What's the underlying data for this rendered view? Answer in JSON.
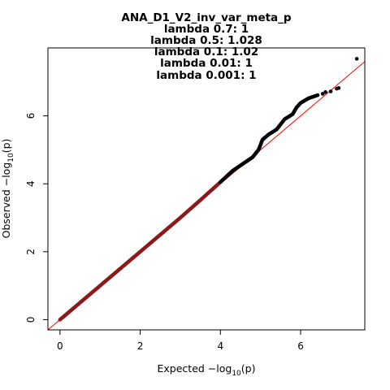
{
  "chart_data": {
    "type": "scatter",
    "title": "ANA_D1_V2_inv_var_meta_p",
    "subtitles": [
      "lambda 0.7: 1",
      "lambda 0.5: 1.028",
      "lambda 0.1: 1.02",
      "lambda 0.01: 1",
      "lambda 0.001: 1"
    ],
    "xlabel": {
      "text": "Expected  −log",
      "sub": "10",
      "tail": "(p)"
    },
    "ylabel": {
      "text": "Observed  −log",
      "sub": "10",
      "tail": "(p)"
    },
    "xlim": [
      -0.3,
      7.6
    ],
    "ylim": [
      -0.3,
      8.0
    ],
    "xticks": [
      0,
      2,
      4,
      6
    ],
    "yticks": [
      0,
      2,
      4,
      6
    ],
    "grid": false,
    "colors": {
      "points": "#000000",
      "reference_line": "#ff0000",
      "overlap": "#8b1a1a"
    },
    "reference_line": {
      "type": "identity",
      "slope": 1,
      "intercept": 0
    },
    "series": [
      {
        "values_comment": "Q-Q curve, expected vs observed -log10(p); dense points",
        "curve": [
          [
            0.0,
            0.0
          ],
          [
            0.5,
            0.5
          ],
          [
            1.0,
            1.0
          ],
          [
            1.5,
            1.5
          ],
          [
            2.0,
            2.0
          ],
          [
            2.5,
            2.5
          ],
          [
            3.0,
            3.0
          ],
          [
            3.5,
            3.52
          ],
          [
            4.0,
            4.05
          ],
          [
            4.3,
            4.38
          ],
          [
            4.6,
            4.62
          ],
          [
            4.8,
            4.78
          ],
          [
            4.95,
            5.0
          ],
          [
            5.05,
            5.3
          ],
          [
            5.2,
            5.45
          ],
          [
            5.4,
            5.6
          ],
          [
            5.6,
            5.9
          ],
          [
            5.8,
            6.05
          ],
          [
            5.9,
            6.25
          ],
          [
            6.0,
            6.38
          ],
          [
            6.2,
            6.52
          ],
          [
            6.4,
            6.6
          ],
          [
            6.45,
            6.62
          ]
        ],
        "tail_points": [
          [
            6.55,
            6.65
          ],
          [
            6.62,
            6.7
          ],
          [
            6.75,
            6.72
          ],
          [
            6.9,
            6.8
          ],
          [
            6.95,
            6.82
          ],
          [
            7.4,
            7.68
          ]
        ]
      }
    ]
  }
}
